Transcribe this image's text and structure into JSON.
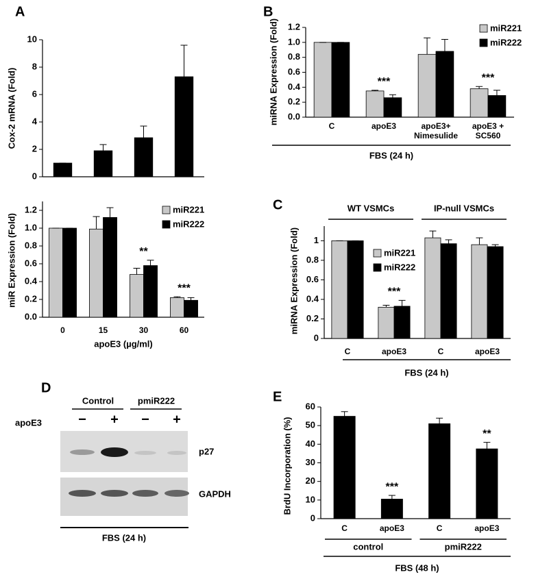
{
  "chart_data": [
    {
      "type": "bar",
      "panel": "A",
      "y_label": "Cox-2 mRNA (Fold)",
      "values": [
        1,
        1.9,
        2.85,
        7.3
      ],
      "errors": [
        0,
        0.45,
        0.85,
        2.3
      ],
      "color": "#000000",
      "ylim": [
        0,
        10
      ],
      "yticks": [
        0,
        2,
        4,
        6,
        8,
        10
      ]
    },
    {
      "type": "bar",
      "y_label": "miR Expression (Fold)",
      "x_label": "apoE3 (µg/ml)",
      "categories": [
        "0",
        "15",
        "30",
        "60"
      ],
      "series": [
        {
          "name": "miR221",
          "color": "#c8c8c8",
          "values": [
            1.0,
            0.99,
            0.48,
            0.22
          ],
          "errors": [
            0,
            0.14,
            0.07,
            0.01
          ]
        },
        {
          "name": "miR222",
          "color": "#000000",
          "values": [
            1.0,
            1.12,
            0.58,
            0.19
          ],
          "errors": [
            0,
            0.11,
            0.06,
            0.03
          ]
        }
      ],
      "annotations": [
        null,
        null,
        "**",
        "***"
      ],
      "ylim": [
        0,
        1.3
      ],
      "yticks": [
        {
          "value": 0,
          "label": "0.0"
        },
        {
          "value": 0.2,
          "label": "0.2"
        },
        {
          "value": 0.4,
          "label": "0.4"
        },
        {
          "value": 0.6,
          "label": "0.6"
        },
        {
          "value": 0.8,
          "label": "0.8"
        },
        {
          "value": 1,
          "label": "1.0"
        },
        {
          "value": 1.2,
          "label": "1.2"
        }
      ]
    },
    {
      "type": "bar",
      "panel": "B",
      "y_label": "miRNA Expression (Fold)",
      "categories": [
        "C",
        "apoE3",
        "apoE3+ Nimesulide",
        "apoE3 + SC560"
      ],
      "series": [
        {
          "name": "miR221",
          "color": "#c8c8c8",
          "values": [
            1.0,
            0.35,
            0.84,
            0.38
          ],
          "errors": [
            0,
            0.01,
            0.22,
            0.03
          ]
        },
        {
          "name": "miR222",
          "color": "#000000",
          "values": [
            1.0,
            0.26,
            0.88,
            0.29
          ],
          "errors": [
            0,
            0.04,
            0.16,
            0.07
          ]
        }
      ],
      "annotations": [
        null,
        "***",
        null,
        "***"
      ],
      "footer": "FBS (24 h)",
      "ylim": [
        0,
        1.2
      ],
      "yticks": [
        {
          "value": 0,
          "label": "0.0"
        },
        {
          "value": 0.2,
          "label": "0.2"
        },
        {
          "value": 0.4,
          "label": "0.4"
        },
        {
          "value": 0.6,
          "label": "0.6"
        },
        {
          "value": 0.8,
          "label": "0.8"
        },
        {
          "value": 1,
          "label": "1.0"
        },
        {
          "value": 1.2,
          "label": "1.2"
        }
      ]
    },
    {
      "type": "bar",
      "panel": "C",
      "y_label": "miRNA Expression (Fold)",
      "categories": [
        "C",
        "apoE3",
        "C",
        "apoE3"
      ],
      "group_labels": [
        "WT VSMCs",
        "IP-null VSMCs"
      ],
      "series": [
        {
          "name": "miR221",
          "color": "#c8c8c8",
          "values": [
            1.0,
            0.32,
            1.03,
            0.96
          ],
          "errors": [
            0,
            0.02,
            0.07,
            0.07
          ]
        },
        {
          "name": "miR222",
          "color": "#000000",
          "values": [
            1.0,
            0.33,
            0.97,
            0.94
          ],
          "errors": [
            0,
            0.06,
            0.04,
            0.02
          ]
        }
      ],
      "annotations": [
        null,
        "***",
        null,
        null
      ],
      "footer": "FBS (24 h)",
      "ylim": [
        0,
        1.15
      ],
      "yticks": [
        0,
        0.2,
        0.4,
        0.6,
        0.8,
        1
      ]
    },
    {
      "type": "bar",
      "panel": "E",
      "y_label": "BrdU Incorporation (%)",
      "categories": [
        "C",
        "apoE3",
        "C",
        "apoE3"
      ],
      "group_labels": [
        "control",
        "pmiR222"
      ],
      "values": [
        55,
        10.5,
        51,
        37.5
      ],
      "errors": [
        2.5,
        2,
        3,
        3.5
      ],
      "color": "#000000",
      "annotations": [
        null,
        "***",
        null,
        "**"
      ],
      "footer": "FBS (48 h)",
      "ylim": [
        0,
        60
      ],
      "yticks": [
        0,
        10,
        20,
        30,
        40,
        50,
        60
      ]
    }
  ],
  "blot": {
    "panel": "D",
    "groups": [
      "Control",
      "pmiR222"
    ],
    "treatment": "apoE3",
    "lanes": [
      "−",
      "+",
      "−",
      "+"
    ],
    "bands": [
      "p27",
      "GAPDH"
    ],
    "footer": "FBS (24 h)"
  }
}
